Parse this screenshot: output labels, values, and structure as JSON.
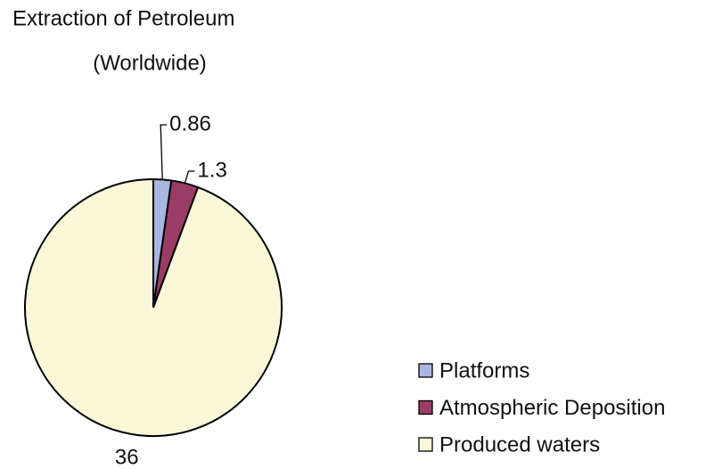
{
  "chart_data": {
    "type": "pie",
    "title": "Extraction of Petroleum",
    "subtitle": "(Worldwide)",
    "categories": [
      "Platforms",
      "Atmospheric Deposition",
      "Produced waters"
    ],
    "values": [
      0.86,
      1.3,
      36
    ],
    "colors": [
      "#a9b6e2",
      "#9a3d66",
      "#fbf8da"
    ],
    "legend": "lower right"
  }
}
